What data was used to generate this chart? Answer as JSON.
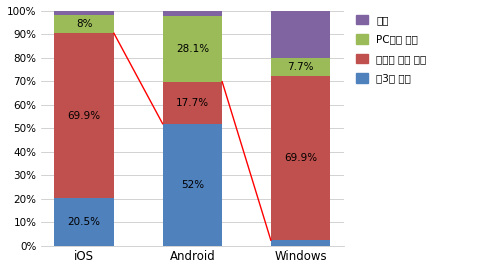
{
  "categories": [
    "iOS",
    "Android",
    "Windows"
  ],
  "series": {
    "제3자 마켓": [
      20.5,
      52.0,
      2.4
    ],
    "시스템 자체 마켓": [
      69.9,
      17.7,
      69.9
    ],
    "PC에서 다운": [
      8.0,
      28.1,
      7.7
    ],
    "기타": [
      1.6,
      2.2,
      20.0
    ]
  },
  "colors": {
    "제3자 마켓": "#4F81BD",
    "시스템 자체 마켓": "#C0504D",
    "PC에서 다운": "#9BBB59",
    "기타": "#8064A2"
  },
  "labels": {
    "iOS": {
      "제3자 마켓": "20.5%",
      "시스템 자체 마켓": "69.9%",
      "PC에서 다운": "8%",
      "기타": ""
    },
    "Android": {
      "제3자 마켓": "52%",
      "시스템 자체 마켓": "17.7%",
      "PC에서 다운": "28.1%",
      "기타": ""
    },
    "Windows": {
      "제3자 마켓": "",
      "시스템 자체 마켓": "69.9%",
      "PC에서 다운": "7.7%",
      "기타": ""
    }
  },
  "legend_order": [
    "기타",
    "PC에서 다운",
    "시스템 자체 마켓",
    "제3자 마켓"
  ],
  "series_order": [
    "제3자 마켓",
    "시스템 자체 마켓",
    "PC에서 다운",
    "기타"
  ],
  "ylim": [
    0,
    100
  ],
  "yticks": [
    0,
    10,
    20,
    30,
    40,
    50,
    60,
    70,
    80,
    90,
    100
  ],
  "background_color": "#FFFFFF",
  "bar_width": 0.55,
  "line_color": "#FF0000",
  "line1": {
    "x": [
      0,
      1
    ],
    "y": [
      90.5,
      52.0
    ]
  },
  "line2": {
    "x": [
      1,
      2
    ],
    "y": [
      69.9,
      2.4
    ]
  }
}
